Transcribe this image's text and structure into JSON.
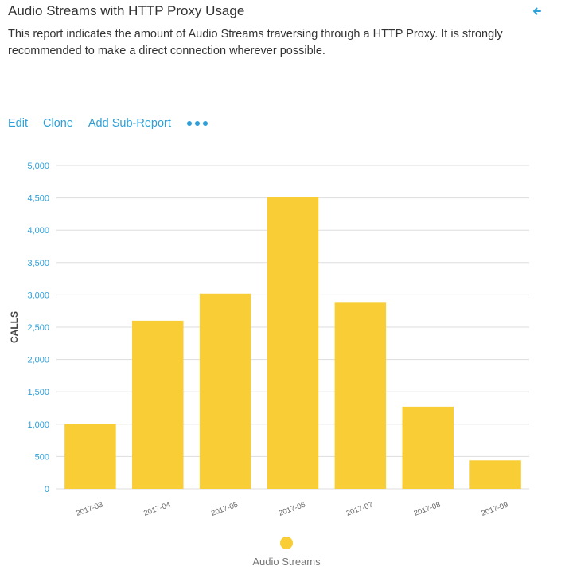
{
  "report": {
    "title": "Audio Streams with HTTP Proxy Usage",
    "description": "This report indicates the amount of Audio Streams traversing through a HTTP Proxy. It is strongly recommended to make a direct connection wherever possible.",
    "back_icon": "arrow-left-icon"
  },
  "actions": {
    "edit_label": "Edit",
    "clone_label": "Clone",
    "add_sub_report_label": "Add Sub-Report",
    "more_icon": "more-dots-icon"
  },
  "colors": {
    "accent": "#2e9fd8",
    "bar": "#f8cd36",
    "grid": "#dddddd",
    "axis_text": "#2e9fd8"
  },
  "chart_data": {
    "type": "bar",
    "categories": [
      "2017-03",
      "2017-04",
      "2017-05",
      "2017-06",
      "2017-07",
      "2017-08",
      "2017-09"
    ],
    "series": [
      {
        "name": "Audio Streams",
        "values": [
          1010,
          2600,
          3020,
          4510,
          2890,
          1270,
          440
        ]
      }
    ],
    "ylabel": "CALLS",
    "xlabel": "",
    "ylim": [
      0,
      5000
    ],
    "yticks": [
      "0",
      "500",
      "1,000",
      "1,500",
      "2,000",
      "2,500",
      "3,000",
      "3,500",
      "4,000",
      "4,500",
      "5,000"
    ],
    "grid": true,
    "legend": "bottom"
  }
}
